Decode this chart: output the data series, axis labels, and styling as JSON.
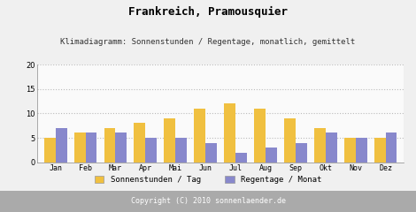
{
  "title": "Frankreich, Pramousquier",
  "subtitle": "Klimadiagramm: Sonnenstunden / Regentage, monatlich, gemittelt",
  "months": [
    "Jan",
    "Feb",
    "Mar",
    "Apr",
    "Mai",
    "Jun",
    "Jul",
    "Aug",
    "Sep",
    "Okt",
    "Nov",
    "Dez"
  ],
  "sonnenstunden": [
    5,
    6,
    7,
    8,
    9,
    11,
    12,
    11,
    9,
    7,
    5,
    5
  ],
  "regentage": [
    7,
    6,
    6,
    5,
    5,
    4,
    2,
    3,
    4,
    6,
    5,
    6
  ],
  "color_sonne": "#F0C040",
  "color_regen": "#8888CC",
  "ylim": [
    0,
    20
  ],
  "yticks": [
    0,
    5,
    10,
    15,
    20
  ],
  "legend_sonne": "Sonnenstunden / Tag",
  "legend_regen": "Regentage / Monat",
  "copyright": "Copyright (C) 2010 sonnenlaender.de",
  "bg_color": "#F0F0F0",
  "plot_bg_color": "#FAFAFA",
  "footer_bg": "#AAAAAA",
  "title_fontsize": 9,
  "subtitle_fontsize": 6.5,
  "tick_fontsize": 6,
  "bar_width": 0.38
}
